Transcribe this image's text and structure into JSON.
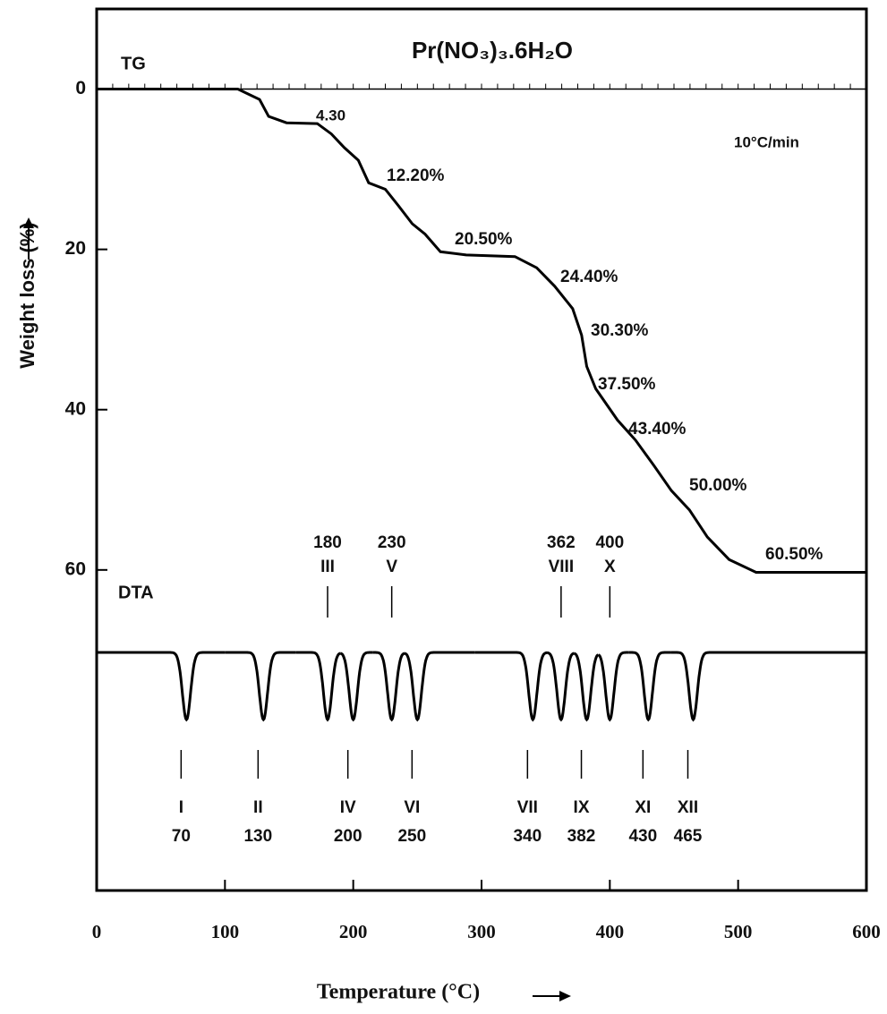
{
  "chart_data": {
    "type": "line",
    "title": "Pr(NO₃)₃.6H₂O",
    "xlabel": "Temperature (°C)",
    "ylabel": "Weight loss (%)",
    "xlim": [
      0,
      600
    ],
    "ylim": [
      -10,
      100
    ],
    "y_inverted": true,
    "xticks": [
      0,
      100,
      200,
      300,
      400,
      500,
      600
    ],
    "yticks": [
      0,
      20,
      40,
      60
    ],
    "series": [
      {
        "name": "TG",
        "color": "#000000",
        "x": [
          0,
          110,
          127,
          134,
          148,
          172,
          183,
          193,
          204,
          212,
          225,
          235,
          246,
          256,
          268,
          288,
          326,
          343,
          357,
          371,
          378,
          382,
          389,
          406,
          420,
          434,
          448,
          462,
          476,
          493,
          514,
          600
        ],
        "values": [
          0,
          0,
          1.3,
          3.4,
          4.2,
          4.3,
          5.6,
          7.3,
          8.9,
          11.7,
          12.5,
          14.5,
          16.8,
          18.1,
          20.3,
          20.7,
          20.9,
          22.3,
          24.6,
          27.4,
          30.7,
          34.6,
          37.4,
          41.3,
          43.8,
          46.9,
          50.1,
          52.5,
          55.9,
          58.7,
          60.3,
          60.3
        ]
      }
    ],
    "annotations": [
      "4.30",
      "12.20%",
      "20.50%",
      "24.40%",
      "30.30%",
      "37.50%",
      "43.40%",
      "50.00%",
      "60.50%",
      "10°C/min"
    ],
    "dta": {
      "name": "DTA",
      "color": "#000000",
      "peaks": [
        {
          "label": "I",
          "temperature": 70
        },
        {
          "label": "II",
          "temperature": 130
        },
        {
          "label": "III",
          "temperature": 180
        },
        {
          "label": "IV",
          "temperature": 200
        },
        {
          "label": "V",
          "temperature": 230
        },
        {
          "label": "VI",
          "temperature": 250
        },
        {
          "label": "VII",
          "temperature": 340
        },
        {
          "label": "VIII",
          "temperature": 362
        },
        {
          "label": "IX",
          "temperature": 382
        },
        {
          "label": "X",
          "temperature": 400
        },
        {
          "label": "XI",
          "temperature": 430
        },
        {
          "label": "XII",
          "temperature": 465
        }
      ]
    }
  }
}
